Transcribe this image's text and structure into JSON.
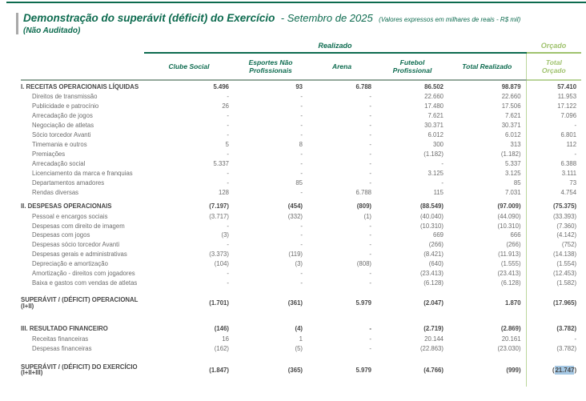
{
  "title": {
    "main": "Demonstração do superávit (déficit) do Exercício",
    "period": "- Setembro de 2025",
    "note": "(Valores expressos em milhares de reais - R$ mil)",
    "subtitle": "(Não Auditado)"
  },
  "colors": {
    "dark_green": "#0d6b4f",
    "light_green": "#9fc26d",
    "header_rule_gray": "#93a89b",
    "orcado_divider": "#bcd69c",
    "text_gray": "#6d6d6d",
    "text_bold": "#474747",
    "highlight_blue": "#a5c8e4",
    "title_bar_gray": "#a9a9a9"
  },
  "table": {
    "group_headers": {
      "realizado": "Realizado",
      "orcado": "Orçado"
    },
    "columns": [
      "Clube Social",
      "Esportes Não Profissionais",
      "Arena",
      "Futebol Profissional",
      "Total Realizado",
      "Total Orçado"
    ],
    "column_keys": [
      "clube-social",
      "esportes-nao-profissionais",
      "arena",
      "futebol-profissional",
      "total-realizado",
      "total-orcado"
    ],
    "rows": [
      {
        "type": "section",
        "label": "I. RECEITAS OPERACIONAIS LÍQUIDAS",
        "values": [
          "5.496",
          "93",
          "6.788",
          "86.502",
          "98.879",
          "57.410"
        ]
      },
      {
        "type": "sub",
        "label": "Direitos de transmissão",
        "values": [
          "-",
          "-",
          "-",
          "22.660",
          "22.660",
          "11.953"
        ]
      },
      {
        "type": "sub",
        "label": "Publicidade e patrocínio",
        "values": [
          "26",
          "-",
          "-",
          "17.480",
          "17.506",
          "17.122"
        ]
      },
      {
        "type": "sub",
        "label": "Arrecadação de jogos",
        "values": [
          "-",
          "-",
          "-",
          "7.621",
          "7.621",
          "7.096"
        ]
      },
      {
        "type": "sub",
        "label": "Negociação de atletas",
        "values": [
          "-",
          "-",
          "-",
          "30.371",
          "30.371",
          "-"
        ]
      },
      {
        "type": "sub",
        "label": "Sócio torcedor Avanti",
        "values": [
          "-",
          "-",
          "-",
          "6.012",
          "6.012",
          "6.801"
        ]
      },
      {
        "type": "sub",
        "label": "Timemania e outros",
        "values": [
          "5",
          "8",
          "-",
          "300",
          "313",
          "112"
        ]
      },
      {
        "type": "sub",
        "label": "Premiações",
        "values": [
          "-",
          "-",
          "-",
          "(1.182)",
          "(1.182)",
          "-"
        ]
      },
      {
        "type": "sub",
        "label": "Arrecadação social",
        "values": [
          "5.337",
          "-",
          "-",
          "-",
          "5.337",
          "6.388"
        ]
      },
      {
        "type": "sub",
        "label": "Licenciamento da marca e franquias",
        "values": [
          "-",
          "-",
          "-",
          "3.125",
          "3.125",
          "3.111"
        ]
      },
      {
        "type": "sub",
        "label": "Departamentos amadores",
        "values": [
          "-",
          "85",
          "-",
          "-",
          "85",
          "73"
        ]
      },
      {
        "type": "sub",
        "label": "Rendas diversas",
        "values": [
          "128",
          "-",
          "6.788",
          "115",
          "7.031",
          "4.754"
        ]
      },
      {
        "type": "spacer",
        "height": 4
      },
      {
        "type": "section",
        "label": "II. DESPESAS OPERACIONAIS",
        "values": [
          "(7.197)",
          "(454)",
          "(809)",
          "(88.549)",
          "(97.009)",
          "(75.375)"
        ]
      },
      {
        "type": "sub",
        "label": "Pessoal e encargos sociais",
        "values": [
          "(3.717)",
          "(332)",
          "(1)",
          "(40.040)",
          "(44.090)",
          "(33.393)"
        ]
      },
      {
        "type": "sub",
        "label": "Despesas com direito de imagem",
        "values": [
          "-",
          "-",
          "-",
          "(10.310)",
          "(10.310)",
          "(7.360)"
        ]
      },
      {
        "type": "sub",
        "label": "Despesas com jogos",
        "values": [
          "(3)",
          "-",
          "-",
          "669",
          "666",
          "(4.142)"
        ]
      },
      {
        "type": "sub",
        "label": "Despesas sócio torcedor Avanti",
        "values": [
          "-",
          "-",
          "-",
          "(266)",
          "(266)",
          "(752)"
        ]
      },
      {
        "type": "sub",
        "label": "Despesas gerais e administrativas",
        "values": [
          "(3.373)",
          "(119)",
          "-",
          "(8.421)",
          "(11.913)",
          "(14.138)"
        ]
      },
      {
        "type": "sub",
        "label": "Depreciação e amortização",
        "values": [
          "(104)",
          "(3)",
          "(808)",
          "(640)",
          "(1.555)",
          "(1.554)"
        ]
      },
      {
        "type": "sub",
        "label": "Amortização - direitos com jogadores",
        "values": [
          "-",
          "-",
          "-",
          "(23.413)",
          "(23.413)",
          "(12.453)"
        ]
      },
      {
        "type": "sub",
        "label": "Baixa e gastos com vendas de atletas",
        "values": [
          "-",
          "-",
          "-",
          "(6.128)",
          "(6.128)",
          "(1.582)"
        ]
      },
      {
        "type": "spacer",
        "height": 6
      },
      {
        "type": "total",
        "label": "SUPERÁVIT / (DÉFICIT) OPERACIONAL (I+II)",
        "values": [
          "(1.701)",
          "(361)",
          "5.979",
          "(2.047)",
          "1.870",
          "(17.965)"
        ]
      },
      {
        "type": "spacer",
        "height": 12
      },
      {
        "type": "section",
        "label": "III. RESULTADO FINANCEIRO",
        "values": [
          "(146)",
          "(4)",
          "-",
          "(2.719)",
          "(2.869)",
          "(3.782)"
        ]
      },
      {
        "type": "sub",
        "label": "Receitas financeiras",
        "values": [
          "16",
          "1",
          "-",
          "20.144",
          "20.161",
          "-"
        ]
      },
      {
        "type": "sub",
        "label": "Despesas financeiras",
        "values": [
          "(162)",
          "(5)",
          "-",
          "(22.863)",
          "(23.030)",
          "(3.782)"
        ]
      },
      {
        "type": "spacer",
        "height": 8
      },
      {
        "type": "total",
        "label": "SUPERÁVIT / (DÉFICIT) DO EXERCÍCIO (I+II+III)",
        "values": [
          "(1.847)",
          "(365)",
          "5.979",
          "(4.766)",
          "(999)",
          "(21.747)"
        ],
        "highlight_col": 5
      },
      {
        "type": "spacer",
        "height": 8
      }
    ]
  }
}
